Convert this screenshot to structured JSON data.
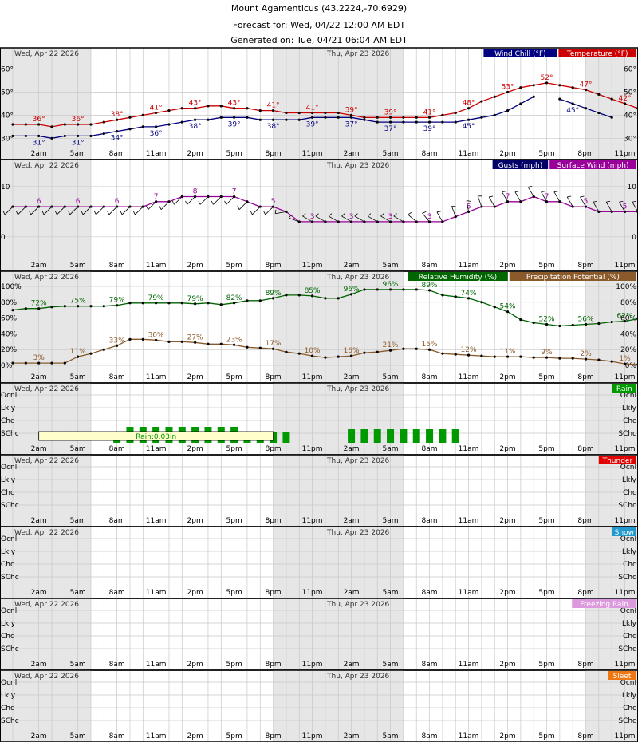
{
  "header": {
    "title": "Mount Agamenticus (43.2224,-70.6929)",
    "forecast_for": "Forecast for: Wed, 04/22 12:00 AM EDT",
    "generated_on": "Generated on: Tue, 04/21 06:04 AM EDT"
  },
  "day_labels": [
    "Wed, Apr 22 2026",
    "Thu, Apr 23 2026"
  ],
  "time_labels": [
    "2am",
    "5am",
    "8am",
    "11am",
    "2pm",
    "5pm",
    "8pm",
    "11pm",
    "2am",
    "5am",
    "8am",
    "11am",
    "2pm",
    "5pm",
    "8pm",
    "11pm"
  ],
  "colors": {
    "temperature": "#cc0000",
    "wind_chill": "#000080",
    "surface_wind": "#990099",
    "gusts": "#000066",
    "humidity": "#006600",
    "precip_potential": "#8b5a2b",
    "rain": "#009900",
    "thunder": "#e00000",
    "snow": "#2299cc",
    "freezing_rain": "#dd99dd",
    "sleet": "#ee7711",
    "night_shade": "#e6e6e6",
    "grid": "#c8c8c8"
  },
  "chart_data": [
    {
      "type": "line",
      "panel": "temperature",
      "legend": [
        "Wind Chill (°F)",
        "Temperature (°F)"
      ],
      "hours_start": 0,
      "hours_step": 1,
      "y_ticks": [
        30,
        40,
        50,
        60
      ],
      "y_tick_labels": [
        "30°",
        "40°",
        "50°",
        "60°"
      ],
      "ylim": [
        27,
        64
      ],
      "series": [
        {
          "name": "Temperature (°F)",
          "values": [
            36,
            36,
            36,
            35,
            36,
            36,
            36,
            37,
            38,
            39,
            40,
            41,
            42,
            43,
            43,
            44,
            44,
            43,
            43,
            42,
            42,
            41,
            41,
            41,
            41,
            41,
            40,
            39,
            39,
            39,
            39,
            39,
            39,
            40,
            41,
            43,
            46,
            48,
            50,
            52,
            53,
            54,
            53,
            52,
            51,
            49,
            47,
            45,
            43,
            42
          ],
          "labels": [
            {
              "h": 2,
              "v": "36°"
            },
            {
              "h": 5,
              "v": "36°"
            },
            {
              "h": 8,
              "v": "38°"
            },
            {
              "h": 11,
              "v": "41°"
            },
            {
              "h": 14,
              "v": "43°"
            },
            {
              "h": 17,
              "v": "43°"
            },
            {
              "h": 20,
              "v": "41°"
            },
            {
              "h": 23,
              "v": "41°"
            },
            {
              "h": 26,
              "v": "39°"
            },
            {
              "h": 29,
              "v": "39°"
            },
            {
              "h": 32,
              "v": "41°"
            },
            {
              "h": 35,
              "v": "48°"
            },
            {
              "h": 38,
              "v": "53°"
            },
            {
              "h": 41,
              "v": "52°"
            },
            {
              "h": 44,
              "v": "47°"
            },
            {
              "h": 47,
              "v": "42°"
            }
          ]
        },
        {
          "name": "Wind Chill (°F)",
          "values": [
            31,
            31,
            31,
            30,
            31,
            31,
            31,
            32,
            33,
            34,
            35,
            35,
            36,
            37,
            38,
            38,
            39,
            39,
            39,
            38,
            38,
            38,
            38,
            39,
            39,
            39,
            39,
            38,
            37,
            37,
            37,
            37,
            37,
            37,
            37,
            38,
            39,
            40,
            42,
            45,
            48
          ],
          "labels": [
            {
              "h": 2,
              "v": "31°"
            },
            {
              "h": 5,
              "v": "31°"
            },
            {
              "h": 8,
              "v": "34°"
            },
            {
              "h": 11,
              "v": "36°"
            },
            {
              "h": 14,
              "v": "38°"
            },
            {
              "h": 17,
              "v": "39°"
            },
            {
              "h": 20,
              "v": "38°"
            },
            {
              "h": 23,
              "v": "39°"
            },
            {
              "h": 26,
              "v": "37°"
            },
            {
              "h": 29,
              "v": "37°"
            },
            {
              "h": 32,
              "v": "39°"
            },
            {
              "h": 35,
              "v": "45°"
            }
          ],
          "tail": {
            "start": 42,
            "values": [
              47,
              45,
              43,
              41,
              39
            ],
            "labels": [
              {
                "h": 43,
                "v": "45°"
              },
              {
                "h": 47,
                "v": "39°"
              }
            ]
          }
        }
      ]
    },
    {
      "type": "line",
      "panel": "wind",
      "legend": [
        "Gusts (mph)",
        "Surface Wind (mph)"
      ],
      "y_ticks": [
        0,
        10
      ],
      "y_tick_labels": [
        "0",
        "10"
      ],
      "ylim": [
        -4,
        13
      ],
      "series": [
        {
          "name": "Surface Wind (mph)",
          "values": [
            6,
            6,
            6,
            6,
            6,
            6,
            6,
            6,
            6,
            6,
            6,
            7,
            7,
            8,
            8,
            8,
            8,
            8,
            7,
            6,
            6,
            5,
            3,
            3,
            3,
            3,
            3,
            3,
            3,
            3,
            3,
            3,
            3,
            3,
            4,
            5,
            6,
            6,
            7,
            7,
            8,
            7,
            7,
            6,
            6,
            5,
            5,
            5,
            5,
            5
          ],
          "labels": [
            {
              "h": 2,
              "v": "6"
            },
            {
              "h": 5,
              "v": "6"
            },
            {
              "h": 8,
              "v": "6"
            },
            {
              "h": 11,
              "v": "7"
            },
            {
              "h": 14,
              "v": "8"
            },
            {
              "h": 17,
              "v": "7"
            },
            {
              "h": 20,
              "v": "5"
            },
            {
              "h": 23,
              "v": "3"
            },
            {
              "h": 26,
              "v": "3"
            },
            {
              "h": 29,
              "v": "3"
            },
            {
              "h": 32,
              "v": "3"
            },
            {
              "h": 35,
              "v": "6"
            },
            {
              "h": 38,
              "v": "7"
            },
            {
              "h": 41,
              "v": "7"
            },
            {
              "h": 44,
              "v": "5"
            },
            {
              "h": 47,
              "v": "5"
            }
          ]
        }
      ],
      "wind_dir_from_deg": [
        225,
        225,
        225,
        225,
        225,
        225,
        225,
        225,
        225,
        225,
        225,
        225,
        225,
        225,
        225,
        225,
        225,
        225,
        225,
        225,
        225,
        260,
        290,
        300,
        300,
        300,
        300,
        300,
        300,
        300,
        300,
        310,
        320,
        330,
        340,
        350,
        340,
        330,
        330,
        330,
        330,
        330,
        330,
        330,
        330,
        330,
        330,
        330,
        330,
        330
      ]
    },
    {
      "type": "line",
      "panel": "humidity",
      "legend": [
        "Relative Humidity (%)",
        "Precipitation Potential (%)"
      ],
      "y_ticks": [
        0,
        20,
        40,
        60,
        80,
        100
      ],
      "y_tick_labels": [
        "0%",
        "20%",
        "40%",
        "60%",
        "80%",
        "100%"
      ],
      "ylim": [
        -4,
        104
      ],
      "series": [
        {
          "name": "Relative Humidity (%)",
          "values": [
            70,
            72,
            72,
            74,
            75,
            75,
            75,
            75,
            76,
            79,
            79,
            79,
            79,
            79,
            78,
            79,
            77,
            79,
            82,
            82,
            85,
            89,
            89,
            88,
            85,
            85,
            90,
            96,
            96,
            96,
            96,
            96,
            95,
            89,
            87,
            85,
            80,
            74,
            68,
            58,
            54,
            52,
            50,
            51,
            52,
            53,
            55,
            56,
            59,
            62
          ],
          "labels": [
            {
              "h": 2,
              "v": "72%"
            },
            {
              "h": 5,
              "v": "75%"
            },
            {
              "h": 8,
              "v": "79%"
            },
            {
              "h": 11,
              "v": "79%"
            },
            {
              "h": 14,
              "v": "79%"
            },
            {
              "h": 17,
              "v": "82%"
            },
            {
              "h": 20,
              "v": "89%"
            },
            {
              "h": 23,
              "v": "85%"
            },
            {
              "h": 26,
              "v": "96%"
            },
            {
              "h": 29,
              "v": "96%"
            },
            {
              "h": 32,
              "v": "89%"
            },
            {
              "h": 35,
              "v": "74%"
            },
            {
              "h": 38,
              "v": "54%"
            },
            {
              "h": 41,
              "v": "52%"
            },
            {
              "h": 44,
              "v": "56%"
            },
            {
              "h": 47,
              "v": "62%"
            }
          ]
        },
        {
          "name": "Precipitation Potential (%)",
          "values": [
            3,
            3,
            3,
            3,
            3,
            11,
            15,
            20,
            25,
            33,
            33,
            32,
            30,
            30,
            29,
            27,
            27,
            26,
            23,
            22,
            21,
            17,
            15,
            12,
            10,
            11,
            12,
            16,
            17,
            19,
            21,
            21,
            20,
            15,
            14,
            13,
            12,
            11,
            11,
            11,
            10,
            10,
            9,
            9,
            8,
            7,
            5,
            2,
            1,
            1
          ],
          "labels": [
            {
              "h": 2,
              "v": "3%"
            },
            {
              "h": 5,
              "v": "11%"
            },
            {
              "h": 8,
              "v": "33%"
            },
            {
              "h": 11,
              "v": "30%"
            },
            {
              "h": 14,
              "v": "27%"
            },
            {
              "h": 17,
              "v": "23%"
            },
            {
              "h": 20,
              "v": "17%"
            },
            {
              "h": 23,
              "v": "10%"
            },
            {
              "h": 26,
              "v": "16%"
            },
            {
              "h": 29,
              "v": "21%"
            },
            {
              "h": 32,
              "v": "15%"
            },
            {
              "h": 35,
              "v": "12%"
            },
            {
              "h": 38,
              "v": "11%"
            },
            {
              "h": 41,
              "v": "9%"
            },
            {
              "h": 44,
              "v": "2%"
            },
            {
              "h": 47,
              "v": "1%"
            }
          ]
        }
      ]
    },
    {
      "type": "bar",
      "panel": "rain",
      "legend": [
        "Rain"
      ],
      "levels": [
        "Ocnl",
        "Lkly",
        "Chc",
        "SChc"
      ],
      "values": [
        0,
        0,
        0,
        0,
        0,
        0,
        0,
        0,
        0.6,
        2,
        2,
        2,
        2,
        2,
        2,
        2,
        2,
        2,
        0.6,
        0.6,
        0.6,
        0.6,
        0,
        0,
        0,
        0,
        1,
        1,
        1,
        1,
        1,
        1,
        1,
        1,
        1,
        0,
        0,
        0,
        0,
        0,
        0,
        0,
        0,
        0,
        0,
        0,
        0,
        0,
        0,
        0
      ],
      "annotation": "Rain:0.03in"
    },
    {
      "type": "bar",
      "panel": "thunder",
      "legend": [
        "Thunder"
      ],
      "levels": [
        "Ocnl",
        "Lkly",
        "Chc",
        "SChc"
      ],
      "values": []
    },
    {
      "type": "bar",
      "panel": "snow",
      "legend": [
        "Snow"
      ],
      "levels": [
        "Ocnl",
        "Lkly",
        "Chc",
        "SChc"
      ],
      "values": []
    },
    {
      "type": "bar",
      "panel": "freezing_rain",
      "legend": [
        "Freezing Rain"
      ],
      "levels": [
        "Ocnl",
        "Lkly",
        "Chc",
        "SChc"
      ],
      "values": []
    },
    {
      "type": "bar",
      "panel": "sleet",
      "legend": [
        "Sleet"
      ],
      "levels": [
        "Ocnl",
        "Lkly",
        "Chc",
        "SChc"
      ],
      "values": []
    }
  ]
}
